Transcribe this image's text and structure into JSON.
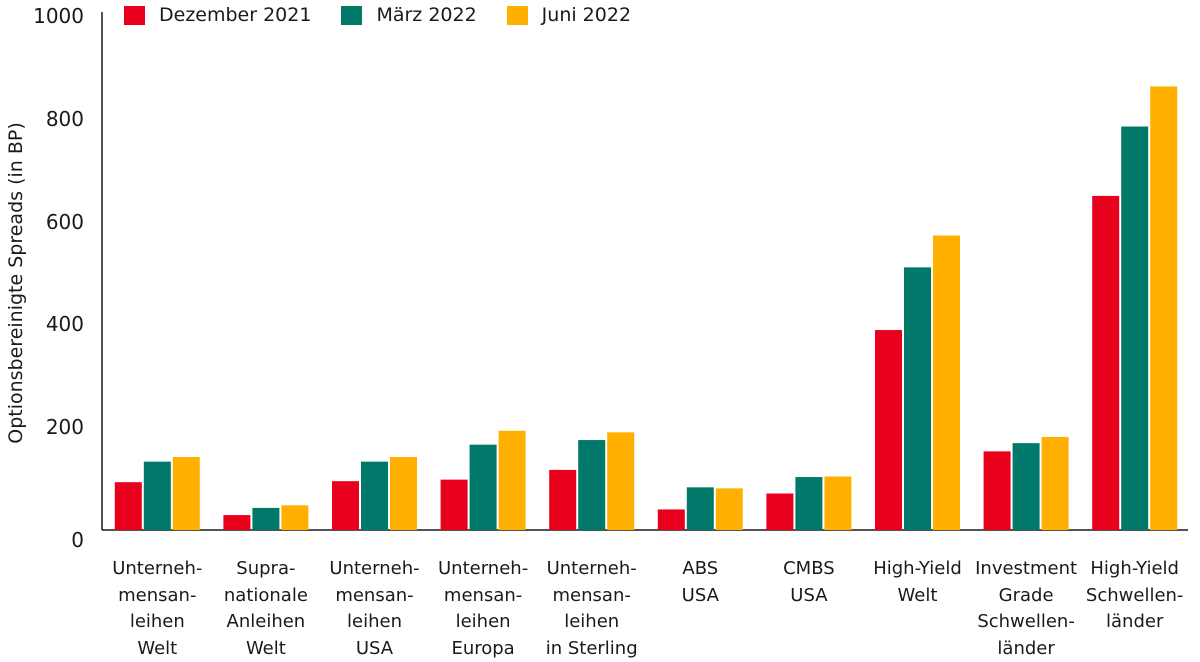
{
  "chart_data": {
    "type": "bar",
    "title": "",
    "xlabel": "",
    "ylabel": "Optionsbereinigte Spreads (in BP)",
    "ylim": [
      0,
      1000
    ],
    "yticks": [
      "0",
      "200",
      "400",
      "600",
      "800",
      "1000"
    ],
    "legend_position": "top-left",
    "grid": false,
    "categories": [
      [
        "Unterneh-",
        "mensan-",
        "leihen",
        "Welt"
      ],
      [
        "Supra-",
        "nationale",
        "Anleihen",
        "Welt"
      ],
      [
        "Unterneh-",
        "mensan-",
        "leihen",
        "USA"
      ],
      [
        "Unterneh-",
        "mensan-",
        "leihen",
        "Europa"
      ],
      [
        "Unterneh-",
        "mensan-",
        "leihen",
        "in Sterling"
      ],
      [
        "ABS",
        "USA"
      ],
      [
        "CMBS",
        "USA"
      ],
      [
        "High-Yield",
        "Welt"
      ],
      [
        "Investment",
        "Grade",
        "Schwellen-",
        "länder"
      ],
      [
        "High-Yield",
        "Schwellen-",
        "länder"
      ]
    ],
    "series": [
      {
        "name": "Dezember 2021",
        "color": "#e8001c",
        "values": [
          93,
          29,
          95,
          98,
          117,
          40,
          71,
          389,
          153,
          650
        ]
      },
      {
        "name": "März 2022",
        "color": "#00796b",
        "values": [
          133,
          43,
          133,
          166,
          175,
          83,
          103,
          511,
          169,
          785
        ]
      },
      {
        "name": "Juni 2022",
        "color": "#ffb000",
        "values": [
          142,
          48,
          142,
          193,
          190,
          81,
          104,
          573,
          181,
          863
        ]
      }
    ]
  }
}
